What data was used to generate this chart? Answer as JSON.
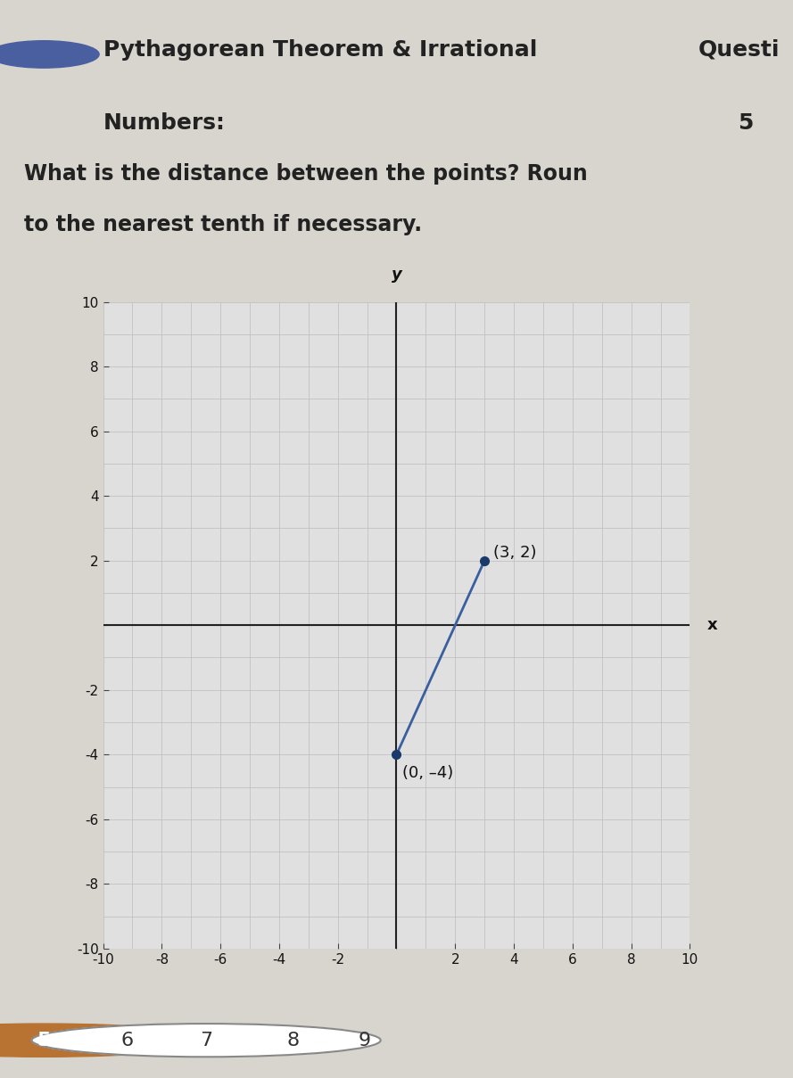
{
  "title_line1": "Pythagorean Theorem & Irrational",
  "title_line2": "Numbers:",
  "question_label": "Questi",
  "question_number": "5",
  "question_text_line1": "What is the distance between the points? Roun",
  "question_text_line2": "to the nearest tenth if necessary.",
  "point1": [
    0,
    -4
  ],
  "point2": [
    3,
    2
  ],
  "label1": "(0, –4)",
  "label2": "(3, 2)",
  "line_color": "#3a5f9f",
  "point_color": "#1a3a6b",
  "axis_color": "#222222",
  "grid_color": "#bbbbbb",
  "grid_minor_color": "#dddddd",
  "bg_color": "#e8e8e8",
  "plot_bg_color": "#e0e0e0",
  "xlim": [
    -10,
    10
  ],
  "ylim": [
    -10,
    10
  ],
  "xticks": [
    -10,
    -8,
    -6,
    -4,
    -2,
    0,
    2,
    4,
    6,
    8,
    10
  ],
  "yticks": [
    -10,
    -8,
    -6,
    -4,
    -2,
    0,
    2,
    4,
    6,
    8,
    10
  ],
  "xlabel": "x",
  "ylabel": "y",
  "page_bg": "#d8d5ce",
  "header_bg": "#e2dfd8",
  "icon_color": "#4a5fa0",
  "nav_5_color": "#b87333",
  "nav_7_color": "#888888",
  "tick_fontsize": 11,
  "label_fontsize": 13
}
